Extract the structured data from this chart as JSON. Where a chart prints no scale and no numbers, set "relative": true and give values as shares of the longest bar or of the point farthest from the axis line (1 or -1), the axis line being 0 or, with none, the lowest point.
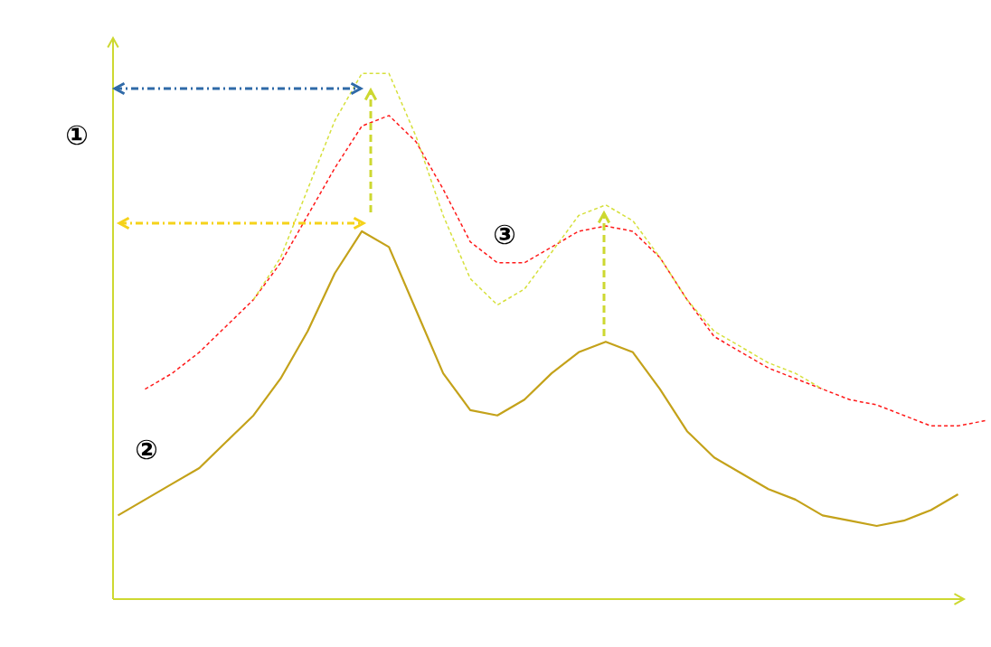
{
  "chart_data": {
    "type": "line",
    "relative": true,
    "categories": [
      null,
      null,
      null,
      null,
      null,
      null,
      null,
      null,
      null,
      null,
      null,
      null,
      null,
      null,
      null,
      null,
      null,
      null,
      null,
      null,
      null,
      null,
      null,
      null,
      null,
      null,
      null,
      null,
      null,
      null,
      null,
      null,
      null
    ],
    "annotations": [
      "①",
      "②",
      "③"
    ],
    "grid": false,
    "marker": "none",
    "series": [
      {
        "color": "#c4a21a",
        "line_style": "solid",
        "values": [
          0.16,
          0.19,
          0.22,
          0.25,
          0.3,
          0.35,
          0.42,
          0.51,
          0.62,
          0.7,
          0.67,
          0.55,
          0.43,
          0.36,
          0.35,
          0.38,
          0.43,
          0.47,
          0.49,
          0.47,
          0.4,
          0.32,
          0.27,
          0.24,
          0.21,
          0.19,
          0.16,
          0.15,
          0.14,
          0.15,
          0.17,
          0.2,
          null
        ]
      },
      {
        "color": "#ff1a1a",
        "line_style": "dashed",
        "values": [
          null,
          0.4,
          0.43,
          0.47,
          0.52,
          0.57,
          0.64,
          0.73,
          0.82,
          0.9,
          0.92,
          0.87,
          0.78,
          0.68,
          0.64,
          0.64,
          0.67,
          0.7,
          0.71,
          0.7,
          0.65,
          0.57,
          0.5,
          0.47,
          0.44,
          0.42,
          0.4,
          0.38,
          0.37,
          0.35,
          0.33,
          0.33,
          0.34
        ]
      },
      {
        "color": "#d6e03c",
        "line_style": "dashed",
        "values": [
          null,
          null,
          null,
          null,
          null,
          0.57,
          0.65,
          0.78,
          0.91,
          1.0,
          1.0,
          0.88,
          0.73,
          0.61,
          0.56,
          0.59,
          0.66,
          0.73,
          0.75,
          0.72,
          0.65,
          0.57,
          0.51,
          0.48,
          0.45,
          0.43,
          0.4,
          null,
          null,
          null,
          null,
          null,
          null
        ]
      }
    ]
  }
}
